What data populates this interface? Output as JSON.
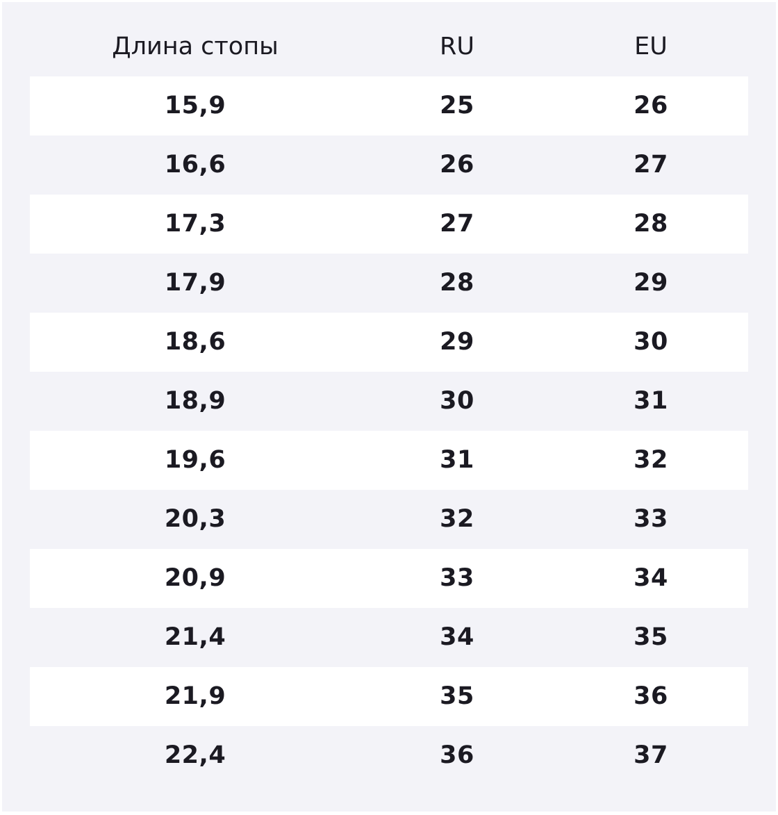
{
  "table": {
    "header": [
      "Длина стопы",
      "RU",
      "EU"
    ],
    "rows": [
      [
        "15,9",
        "25",
        "26"
      ],
      [
        "16,6",
        "26",
        "27"
      ],
      [
        "17,3",
        "27",
        "28"
      ],
      [
        "17,9",
        "28",
        "29"
      ],
      [
        "18,6",
        "29",
        "30"
      ],
      [
        "18,9",
        "30",
        "31"
      ],
      [
        "19,6",
        "31",
        "32"
      ],
      [
        "20,3",
        "32",
        "33"
      ],
      [
        "20,9",
        "33",
        "34"
      ],
      [
        "21,4",
        "34",
        "35"
      ],
      [
        "21,9",
        "35",
        "36"
      ],
      [
        "22,4",
        "36",
        "37"
      ]
    ]
  }
}
